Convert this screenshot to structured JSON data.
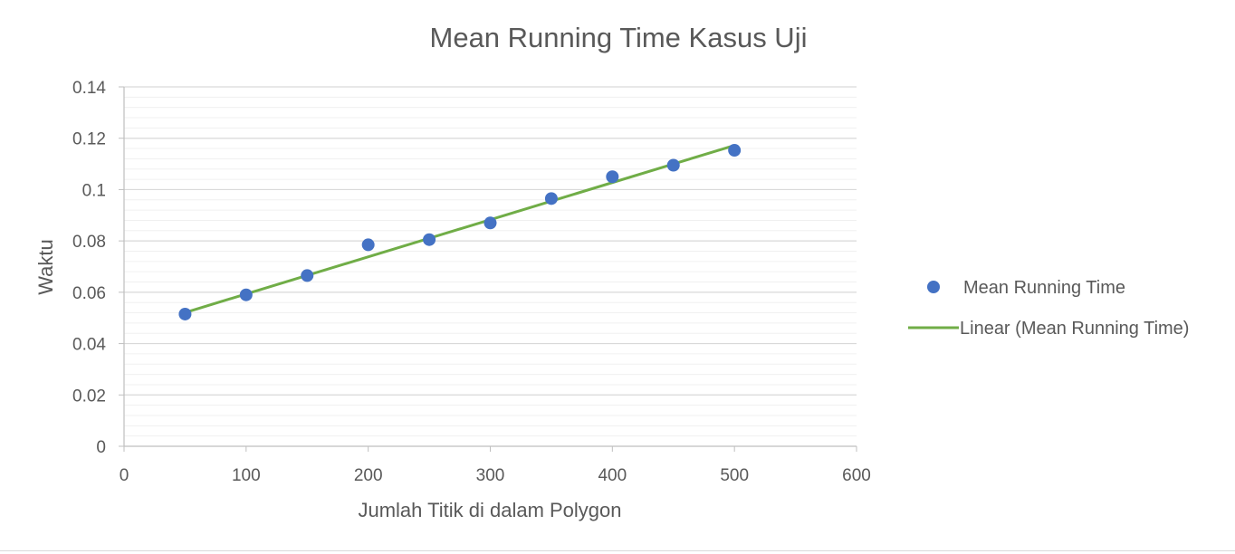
{
  "chart_data": {
    "type": "scatter",
    "title": "Mean Running Time Kasus Uji",
    "xlabel": "Jumlah Titik di dalam Polygon",
    "ylabel": "Waktu",
    "xlim": [
      0,
      600
    ],
    "ylim": [
      0,
      0.14
    ],
    "x_ticks": [
      "0",
      "100",
      "200",
      "300",
      "400",
      "500",
      "600"
    ],
    "y_ticks": [
      "0",
      "0.02",
      "0.04",
      "0.06",
      "0.08",
      "0.1",
      "0.12",
      "0.14"
    ],
    "grid": true,
    "minor_grid": true,
    "legend_position": "right",
    "series": [
      {
        "name": "Mean Running Time",
        "kind": "marker",
        "color": "#4472C4",
        "x": [
          50,
          100,
          150,
          200,
          250,
          300,
          350,
          400,
          450,
          500
        ],
        "y": [
          0.0515,
          0.059,
          0.0665,
          0.0785,
          0.0805,
          0.087,
          0.0965,
          0.105,
          0.1095,
          0.1153
        ]
      },
      {
        "name": "Linear (Mean Running Time)",
        "kind": "trendline",
        "color": "#70AD47",
        "x": [
          50,
          500
        ],
        "y": [
          0.0521,
          0.1172
        ]
      }
    ]
  }
}
